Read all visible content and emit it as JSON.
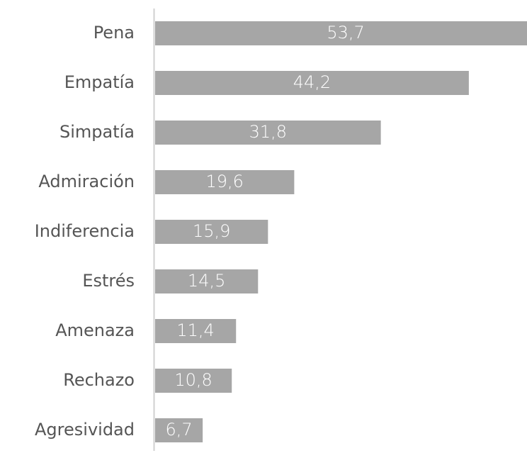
{
  "chart_data": {
    "type": "bar",
    "orientation": "horizontal",
    "categories": [
      "Pena",
      "Empatía",
      "Simpatía",
      "Admiración",
      "Indiferencia",
      "Estrés",
      "Amenaza",
      "Rechazo",
      "Agresividad"
    ],
    "values": [
      53.7,
      44.2,
      31.8,
      19.6,
      15.9,
      14.5,
      11.4,
      10.8,
      6.7
    ],
    "value_labels": [
      "53,7",
      "44,2",
      "31,8",
      "19,6",
      "15,9",
      "14,5",
      "11,4",
      "10,8",
      "6,7"
    ],
    "color": "#a6a6a6"
  }
}
